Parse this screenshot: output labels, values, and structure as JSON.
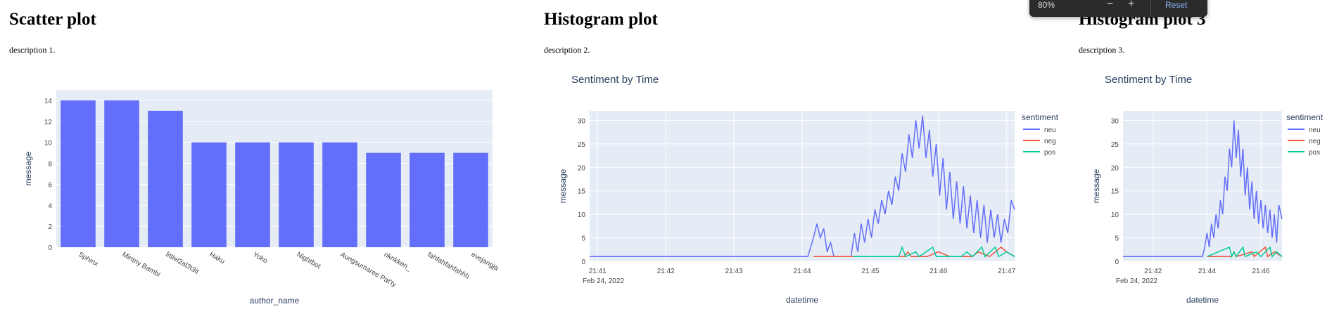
{
  "sections": [
    {
      "title": "Scatter plot",
      "description": "description 1."
    },
    {
      "title": "Histogram plot",
      "description": "description 2."
    },
    {
      "title": "Histogram plot 3",
      "description": "description 3."
    }
  ],
  "zoom_popup": {
    "level": "80%",
    "minus": "−",
    "plus": "+",
    "reset": "Reset"
  },
  "chart_data": [
    {
      "type": "bar",
      "title": "",
      "xlabel": "author_name",
      "ylabel": "message",
      "ylim": [
        0,
        15
      ],
      "yticks": [
        0,
        2,
        4,
        6,
        8,
        10,
        12,
        14
      ],
      "categories": [
        "Sphinx",
        "Mintny Bambi",
        "littlel2al3t3it",
        "Haku",
        "Yoko",
        "Nightbot",
        "Aungsumaree Pat'ty",
        "nknkken_",
        "fahfahfahfahhh",
        "evejangja"
      ],
      "values": [
        14,
        14,
        13,
        10,
        10,
        10,
        10,
        9,
        9,
        9
      ],
      "color": "#636efa",
      "grid": true
    },
    {
      "type": "line",
      "title": "Sentiment by Time",
      "xlabel": "datetime",
      "ylabel": "message",
      "xlim": [
        "21:40:53",
        "21:47:07"
      ],
      "ylim": [
        0,
        32
      ],
      "yticks": [
        0,
        5,
        10,
        15,
        20,
        25,
        30
      ],
      "xticks": [
        "21:41",
        "21:42",
        "21:43",
        "21:44",
        "21:45",
        "21:46",
        "21:47"
      ],
      "date_label": "Feb 24, 2022",
      "legend_title": "sentiment",
      "legend_position": "right",
      "series": [
        {
          "name": "neu",
          "color": "#636efa",
          "points": [
            [
              "21:40:53",
              1
            ],
            [
              "21:44:05",
              1
            ],
            [
              "21:44:10",
              5
            ],
            [
              "21:44:13",
              8
            ],
            [
              "21:44:16",
              5
            ],
            [
              "21:44:19",
              7
            ],
            [
              "21:44:22",
              2
            ],
            [
              "21:44:25",
              4
            ],
            [
              "21:44:28",
              1
            ],
            [
              "21:44:31",
              1
            ],
            [
              "21:44:34",
              1
            ],
            [
              "21:44:37",
              1
            ],
            [
              "21:44:40",
              1
            ],
            [
              "21:44:43",
              1
            ],
            [
              "21:44:46",
              6
            ],
            [
              "21:44:49",
              2
            ],
            [
              "21:44:52",
              8
            ],
            [
              "21:44:55",
              4
            ],
            [
              "21:44:58",
              9
            ],
            [
              "21:45:01",
              5
            ],
            [
              "21:45:04",
              11
            ],
            [
              "21:45:07",
              8
            ],
            [
              "21:45:10",
              13
            ],
            [
              "21:45:13",
              10
            ],
            [
              "21:45:16",
              15
            ],
            [
              "21:45:19",
              12
            ],
            [
              "21:45:22",
              18
            ],
            [
              "21:45:25",
              15
            ],
            [
              "21:45:28",
              23
            ],
            [
              "21:45:31",
              19
            ],
            [
              "21:45:34",
              27
            ],
            [
              "21:45:37",
              22
            ],
            [
              "21:45:40",
              30
            ],
            [
              "21:45:43",
              24
            ],
            [
              "21:45:46",
              31
            ],
            [
              "21:45:49",
              22
            ],
            [
              "21:45:52",
              28
            ],
            [
              "21:45:55",
              18
            ],
            [
              "21:45:58",
              25
            ],
            [
              "21:46:01",
              14
            ],
            [
              "21:46:04",
              22
            ],
            [
              "21:46:07",
              11
            ],
            [
              "21:46:10",
              19
            ],
            [
              "21:46:13",
              9
            ],
            [
              "21:46:16",
              17
            ],
            [
              "21:46:19",
              8
            ],
            [
              "21:46:22",
              16
            ],
            [
              "21:46:25",
              7
            ],
            [
              "21:46:28",
              14
            ],
            [
              "21:46:31",
              6
            ],
            [
              "21:46:34",
              13
            ],
            [
              "21:46:37",
              5
            ],
            [
              "21:46:40",
              12
            ],
            [
              "21:46:43",
              4
            ],
            [
              "21:46:46",
              11
            ],
            [
              "21:46:49",
              5
            ],
            [
              "21:46:52",
              10
            ],
            [
              "21:46:55",
              4
            ],
            [
              "21:46:58",
              9
            ],
            [
              "21:47:01",
              6
            ],
            [
              "21:47:04",
              13
            ],
            [
              "21:47:07",
              11
            ]
          ]
        },
        {
          "name": "neg",
          "color": "#ef553b",
          "points": [
            [
              "21:44:10",
              1
            ],
            [
              "21:45:30",
              1
            ],
            [
              "21:45:33",
              2
            ],
            [
              "21:45:36",
              1
            ],
            [
              "21:45:50",
              1
            ],
            [
              "21:46:00",
              2
            ],
            [
              "21:46:10",
              1
            ],
            [
              "21:46:30",
              1
            ],
            [
              "21:46:35",
              2
            ],
            [
              "21:46:45",
              1
            ],
            [
              "21:46:50",
              2
            ],
            [
              "21:46:55",
              3
            ],
            [
              "21:47:00",
              2
            ],
            [
              "21:47:07",
              1
            ]
          ]
        },
        {
          "name": "pos",
          "color": "#00cc96",
          "points": [
            [
              "21:44:45",
              1
            ],
            [
              "21:45:25",
              1
            ],
            [
              "21:45:28",
              3
            ],
            [
              "21:45:31",
              1
            ],
            [
              "21:45:40",
              2
            ],
            [
              "21:45:43",
              1
            ],
            [
              "21:45:55",
              3
            ],
            [
              "21:45:58",
              1
            ],
            [
              "21:46:20",
              1
            ],
            [
              "21:46:25",
              2
            ],
            [
              "21:46:30",
              1
            ],
            [
              "21:46:38",
              3
            ],
            [
              "21:46:41",
              1
            ],
            [
              "21:46:50",
              3
            ],
            [
              "21:46:53",
              1
            ],
            [
              "21:47:00",
              2
            ],
            [
              "21:47:07",
              1
            ]
          ]
        }
      ]
    },
    {
      "type": "line",
      "title": "Sentiment by Time",
      "xlabel": "datetime",
      "ylabel": "message",
      "xlim": [
        "21:40:53",
        "21:46:47"
      ],
      "ylim": [
        0,
        32
      ],
      "yticks": [
        0,
        5,
        10,
        15,
        20,
        25,
        30
      ],
      "xticks": [
        "21:42",
        "21:44",
        "21:46"
      ],
      "date_label": "Feb 24, 2022",
      "legend_title": "sentiment",
      "legend_position": "right",
      "series": [
        {
          "name": "neu",
          "color": "#636efa",
          "points": [
            [
              "21:40:53",
              1
            ],
            [
              "21:43:50",
              1
            ],
            [
              "21:43:55",
              3
            ],
            [
              "21:44:00",
              6
            ],
            [
              "21:44:05",
              3
            ],
            [
              "21:44:10",
              8
            ],
            [
              "21:44:15",
              5
            ],
            [
              "21:44:20",
              10
            ],
            [
              "21:44:25",
              7
            ],
            [
              "21:44:30",
              13
            ],
            [
              "21:44:35",
              10
            ],
            [
              "21:44:40",
              18
            ],
            [
              "21:44:45",
              15
            ],
            [
              "21:44:50",
              24
            ],
            [
              "21:44:55",
              20
            ],
            [
              "21:45:00",
              30
            ],
            [
              "21:45:05",
              22
            ],
            [
              "21:45:10",
              28
            ],
            [
              "21:45:15",
              18
            ],
            [
              "21:45:20",
              24
            ],
            [
              "21:45:25",
              14
            ],
            [
              "21:45:30",
              20
            ],
            [
              "21:45:35",
              11
            ],
            [
              "21:45:40",
              17
            ],
            [
              "21:45:45",
              9
            ],
            [
              "21:45:50",
              15
            ],
            [
              "21:45:55",
              8
            ],
            [
              "21:46:00",
              13
            ],
            [
              "21:46:05",
              7
            ],
            [
              "21:46:10",
              12
            ],
            [
              "21:46:15",
              6
            ],
            [
              "21:46:20",
              11
            ],
            [
              "21:46:25",
              5
            ],
            [
              "21:46:30",
              10
            ],
            [
              "21:46:35",
              4
            ],
            [
              "21:46:40",
              12
            ],
            [
              "21:46:47",
              9
            ]
          ]
        },
        {
          "name": "neg",
          "color": "#ef553b",
          "points": [
            [
              "21:44:00",
              1
            ],
            [
              "21:44:55",
              1
            ],
            [
              "21:45:00",
              2
            ],
            [
              "21:45:05",
              1
            ],
            [
              "21:45:40",
              2
            ],
            [
              "21:45:45",
              1
            ],
            [
              "21:46:10",
              3
            ],
            [
              "21:46:15",
              1
            ],
            [
              "21:46:30",
              2
            ],
            [
              "21:46:47",
              1
            ]
          ]
        },
        {
          "name": "pos",
          "color": "#00cc96",
          "points": [
            [
              "21:44:00",
              1
            ],
            [
              "21:44:50",
              3
            ],
            [
              "21:44:55",
              1
            ],
            [
              "21:45:00",
              2
            ],
            [
              "21:45:05",
              1
            ],
            [
              "21:45:20",
              3
            ],
            [
              "21:45:25",
              1
            ],
            [
              "21:45:50",
              2
            ],
            [
              "21:46:00",
              1
            ],
            [
              "21:46:20",
              3
            ],
            [
              "21:46:25",
              1
            ],
            [
              "21:46:35",
              2
            ],
            [
              "21:46:47",
              1
            ]
          ]
        }
      ]
    }
  ]
}
